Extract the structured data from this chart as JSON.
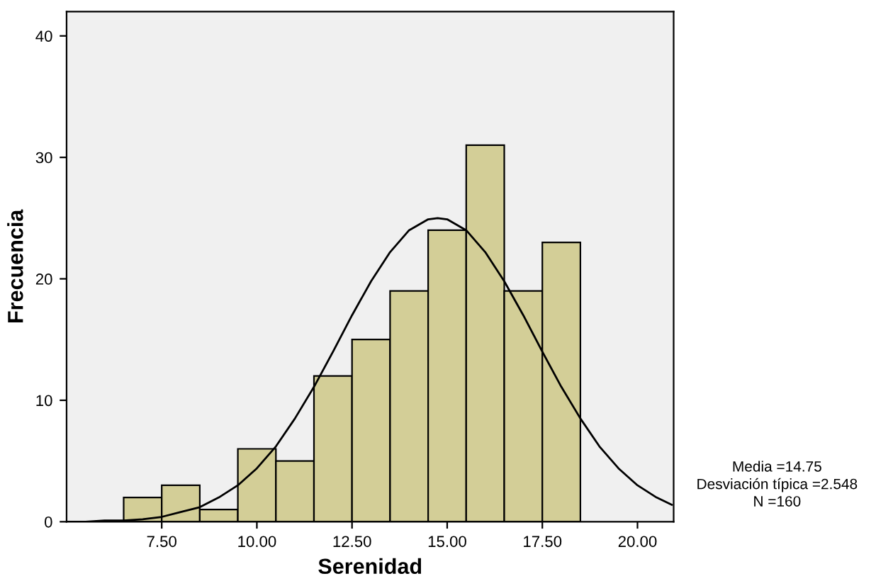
{
  "chart_data": {
    "type": "histogram",
    "xlabel": "Serenidad",
    "ylabel": "Frecuencia",
    "bins": [
      6.5,
      7.5,
      8.5,
      9.5,
      10.5,
      11.5,
      12.5,
      13.5,
      14.5,
      15.5,
      16.5,
      17.5,
      18.5
    ],
    "values": [
      2,
      3,
      1,
      6,
      5,
      12,
      15,
      19,
      24,
      31,
      19,
      23
    ],
    "color": "#d3ce97",
    "series": [
      {
        "type": "line",
        "color": "#000000",
        "x": [
          5,
          5.5,
          6,
          6.5,
          7,
          7.5,
          8,
          8.5,
          9,
          9.5,
          10,
          10.5,
          11,
          11.5,
          12,
          12.5,
          13,
          13.5,
          14,
          14.5,
          14.75,
          15,
          15.5,
          16,
          16.5,
          17,
          17.5,
          18,
          18.5,
          19,
          19.5,
          20,
          20.5,
          20.9
        ],
        "values": [
          0.0,
          0.0,
          0.1,
          0.1,
          0.2,
          0.4,
          0.8,
          1.2,
          2.0,
          3.0,
          4.4,
          6.2,
          8.5,
          11.1,
          14.0,
          17.0,
          19.8,
          22.2,
          24.0,
          24.9,
          25.0,
          24.9,
          24.0,
          22.2,
          19.8,
          17.0,
          14.0,
          11.1,
          8.5,
          6.2,
          4.4,
          3.0,
          2.0,
          1.4
        ]
      }
    ],
    "xlim": [
      5,
      20.95
    ],
    "ylim": [
      0,
      42
    ],
    "xticks": [
      {
        "value": 7.5,
        "label": "7.50"
      },
      {
        "value": 10,
        "label": "10.00"
      },
      {
        "value": 12.5,
        "label": "12.50"
      },
      {
        "value": 15,
        "label": "15.00"
      },
      {
        "value": 17.5,
        "label": "17.50"
      },
      {
        "value": 20,
        "label": "20.00"
      }
    ],
    "yticks": [
      0,
      10,
      20,
      30,
      40
    ],
    "grid": false,
    "legend": false,
    "annotations": [
      "Media =14.75",
      "Desviación típica =2.548",
      "N =160"
    ]
  }
}
